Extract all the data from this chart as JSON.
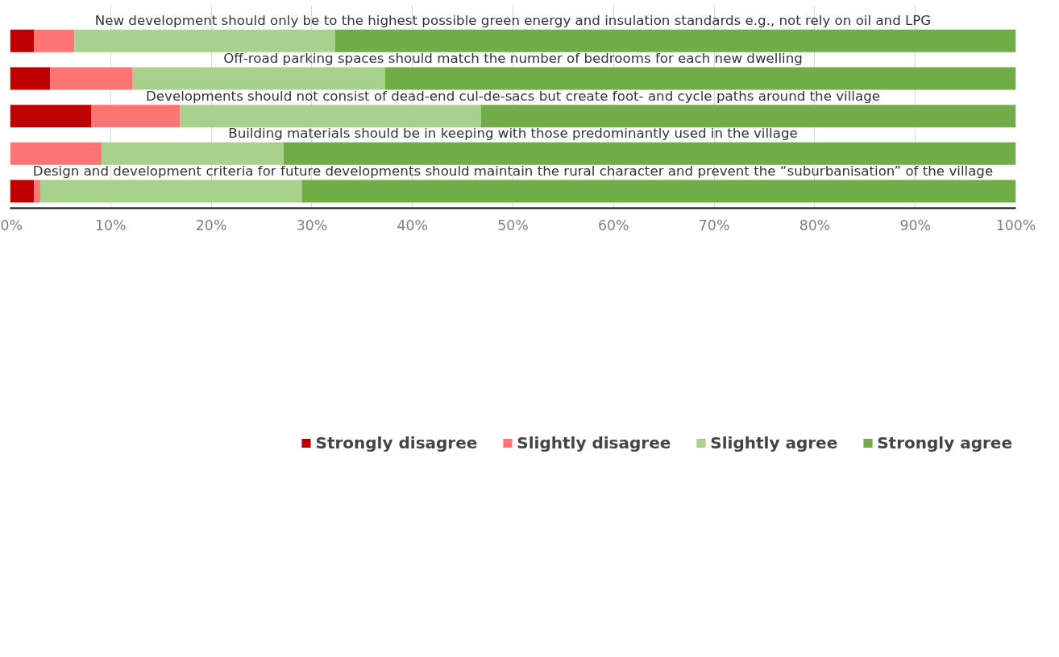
{
  "chart_data": {
    "type": "bar",
    "orientation": "horizontal",
    "stacked": true,
    "categories": [
      "New development should only be to the highest possible green energy and insulation standards e.g., not rely on oil and LPG",
      "Off-road parking spaces should match the number of bedrooms for each new dwelling",
      "Developments should not consist of dead-end cul-de-sacs but create foot- and cycle paths around the village",
      "Building materials should be in keeping with those predominantly used in the village",
      "Design and development criteria for future developments should maintain the rural character and prevent the “suburbanisation” of the village"
    ],
    "series": [
      {
        "name": "Strongly disagree",
        "color": "#c00000",
        "values": [
          2.4,
          4.0,
          8.1,
          0,
          2.4
        ]
      },
      {
        "name": "Slightly disagree",
        "color": "#ff7474",
        "values": [
          4.0,
          8.2,
          8.8,
          9.1,
          0.6
        ]
      },
      {
        "name": "Slightly agree",
        "color": "#a9d18e",
        "values": [
          25.9,
          25.1,
          29.9,
          18.1,
          26.0
        ]
      },
      {
        "name": "Strongly agree",
        "color": "#70ad47",
        "values": [
          67.7,
          62.7,
          53.2,
          72.8,
          71.0
        ]
      }
    ],
    "xlim": [
      0,
      100
    ],
    "xticks": [
      {
        "value": 0,
        "label": "0%"
      },
      {
        "value": 10,
        "label": "10%"
      },
      {
        "value": 20,
        "label": "20%"
      },
      {
        "value": 30,
        "label": "30%"
      },
      {
        "value": 40,
        "label": "40%"
      },
      {
        "value": 50,
        "label": "50%"
      },
      {
        "value": 60,
        "label": "60%"
      },
      {
        "value": 70,
        "label": "70%"
      },
      {
        "value": 80,
        "label": "80%"
      },
      {
        "value": 90,
        "label": "90%"
      },
      {
        "value": 100,
        "label": "100%"
      }
    ],
    "grid": "x",
    "legend": "bottom"
  }
}
